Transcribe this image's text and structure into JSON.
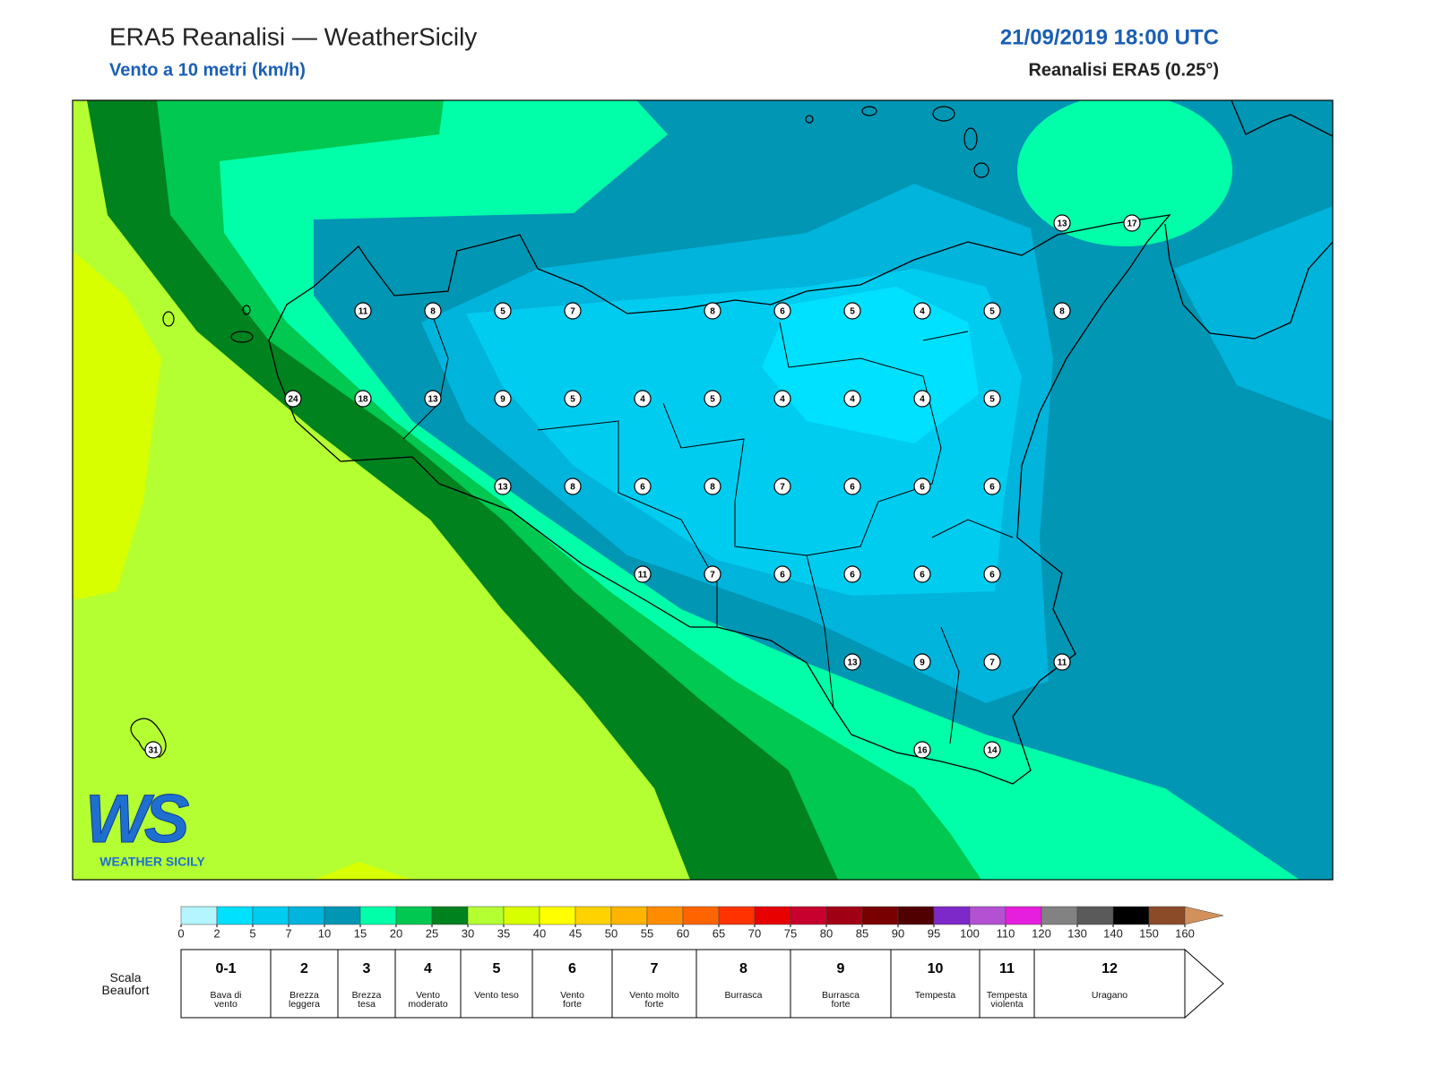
{
  "header": {
    "title": "ERA5 Reanalisi — WeatherSicily",
    "subtitle": "Vento a 10 metri (km/h)",
    "date": "21/09/2019 18:00 UTC",
    "source": "Reanalisi ERA5 (0.25°)"
  },
  "stations": {
    "rows": [
      [
        null,
        null,
        null,
        null,
        null,
        null,
        null,
        null,
        null,
        null,
        null,
        null,
        null,
        13,
        17
      ],
      [
        null,
        null,
        null,
        11,
        8,
        5,
        7,
        null,
        8,
        6,
        5,
        4,
        5,
        8,
        null
      ],
      [
        null,
        null,
        24,
        18,
        13,
        9,
        5,
        4,
        5,
        4,
        4,
        4,
        5,
        null,
        null
      ],
      [
        null,
        null,
        null,
        null,
        null,
        13,
        8,
        6,
        8,
        7,
        6,
        6,
        6,
        null,
        null
      ],
      [
        null,
        null,
        null,
        null,
        null,
        null,
        null,
        11,
        7,
        6,
        6,
        6,
        6,
        null,
        null
      ],
      [
        null,
        null,
        null,
        null,
        null,
        null,
        null,
        null,
        null,
        null,
        13,
        9,
        7,
        11,
        null
      ],
      [
        31,
        null,
        null,
        null,
        null,
        null,
        null,
        null,
        null,
        null,
        null,
        16,
        14,
        null,
        null
      ]
    ]
  },
  "logo": {
    "letters": "WS",
    "text": "WEATHER SICILY"
  },
  "colorbar": {
    "ticks": [
      0,
      2,
      5,
      7,
      10,
      15,
      20,
      25,
      30,
      35,
      40,
      45,
      50,
      55,
      60,
      65,
      70,
      75,
      80,
      85,
      90,
      95,
      100,
      110,
      120,
      130,
      140,
      150,
      160
    ],
    "colors": [
      "#b4f5ff",
      "#00e0ff",
      "#00ccf0",
      "#00b4dc",
      "#0096b4",
      "#00ffa8",
      "#00c850",
      "#00821e",
      "#b4ff32",
      "#d7ff00",
      "#ffff00",
      "#ffd200",
      "#ffb400",
      "#ff8c00",
      "#ff6400",
      "#ff3200",
      "#e60000",
      "#c8002d",
      "#a00014",
      "#780000",
      "#500000",
      "#7d28c8",
      "#b450d2",
      "#e61ede",
      "#828282",
      "#5a5a5a",
      "#000000",
      "#8c4b28",
      "#d2915a"
    ]
  },
  "beaufort": {
    "label": "Scala Beaufort",
    "levels": [
      {
        "force": "0-1",
        "name": "Bava di vento"
      },
      {
        "force": 2,
        "name": "Brezza leggera"
      },
      {
        "force": 3,
        "name": "Brezza tesa"
      },
      {
        "force": 4,
        "name": "Vento moderato"
      },
      {
        "force": 5,
        "name": "Vento teso"
      },
      {
        "force": 6,
        "name": "Vento forte"
      },
      {
        "force": 7,
        "name": "Vento molto forte"
      },
      {
        "force": 8,
        "name": "Burrasca"
      },
      {
        "force": 9,
        "name": "Burrasca forte"
      },
      {
        "force": 10,
        "name": "Tempesta"
      },
      {
        "force": 11,
        "name": "Tempesta violenta"
      },
      {
        "force": 12,
        "name": "Uragano"
      }
    ]
  }
}
